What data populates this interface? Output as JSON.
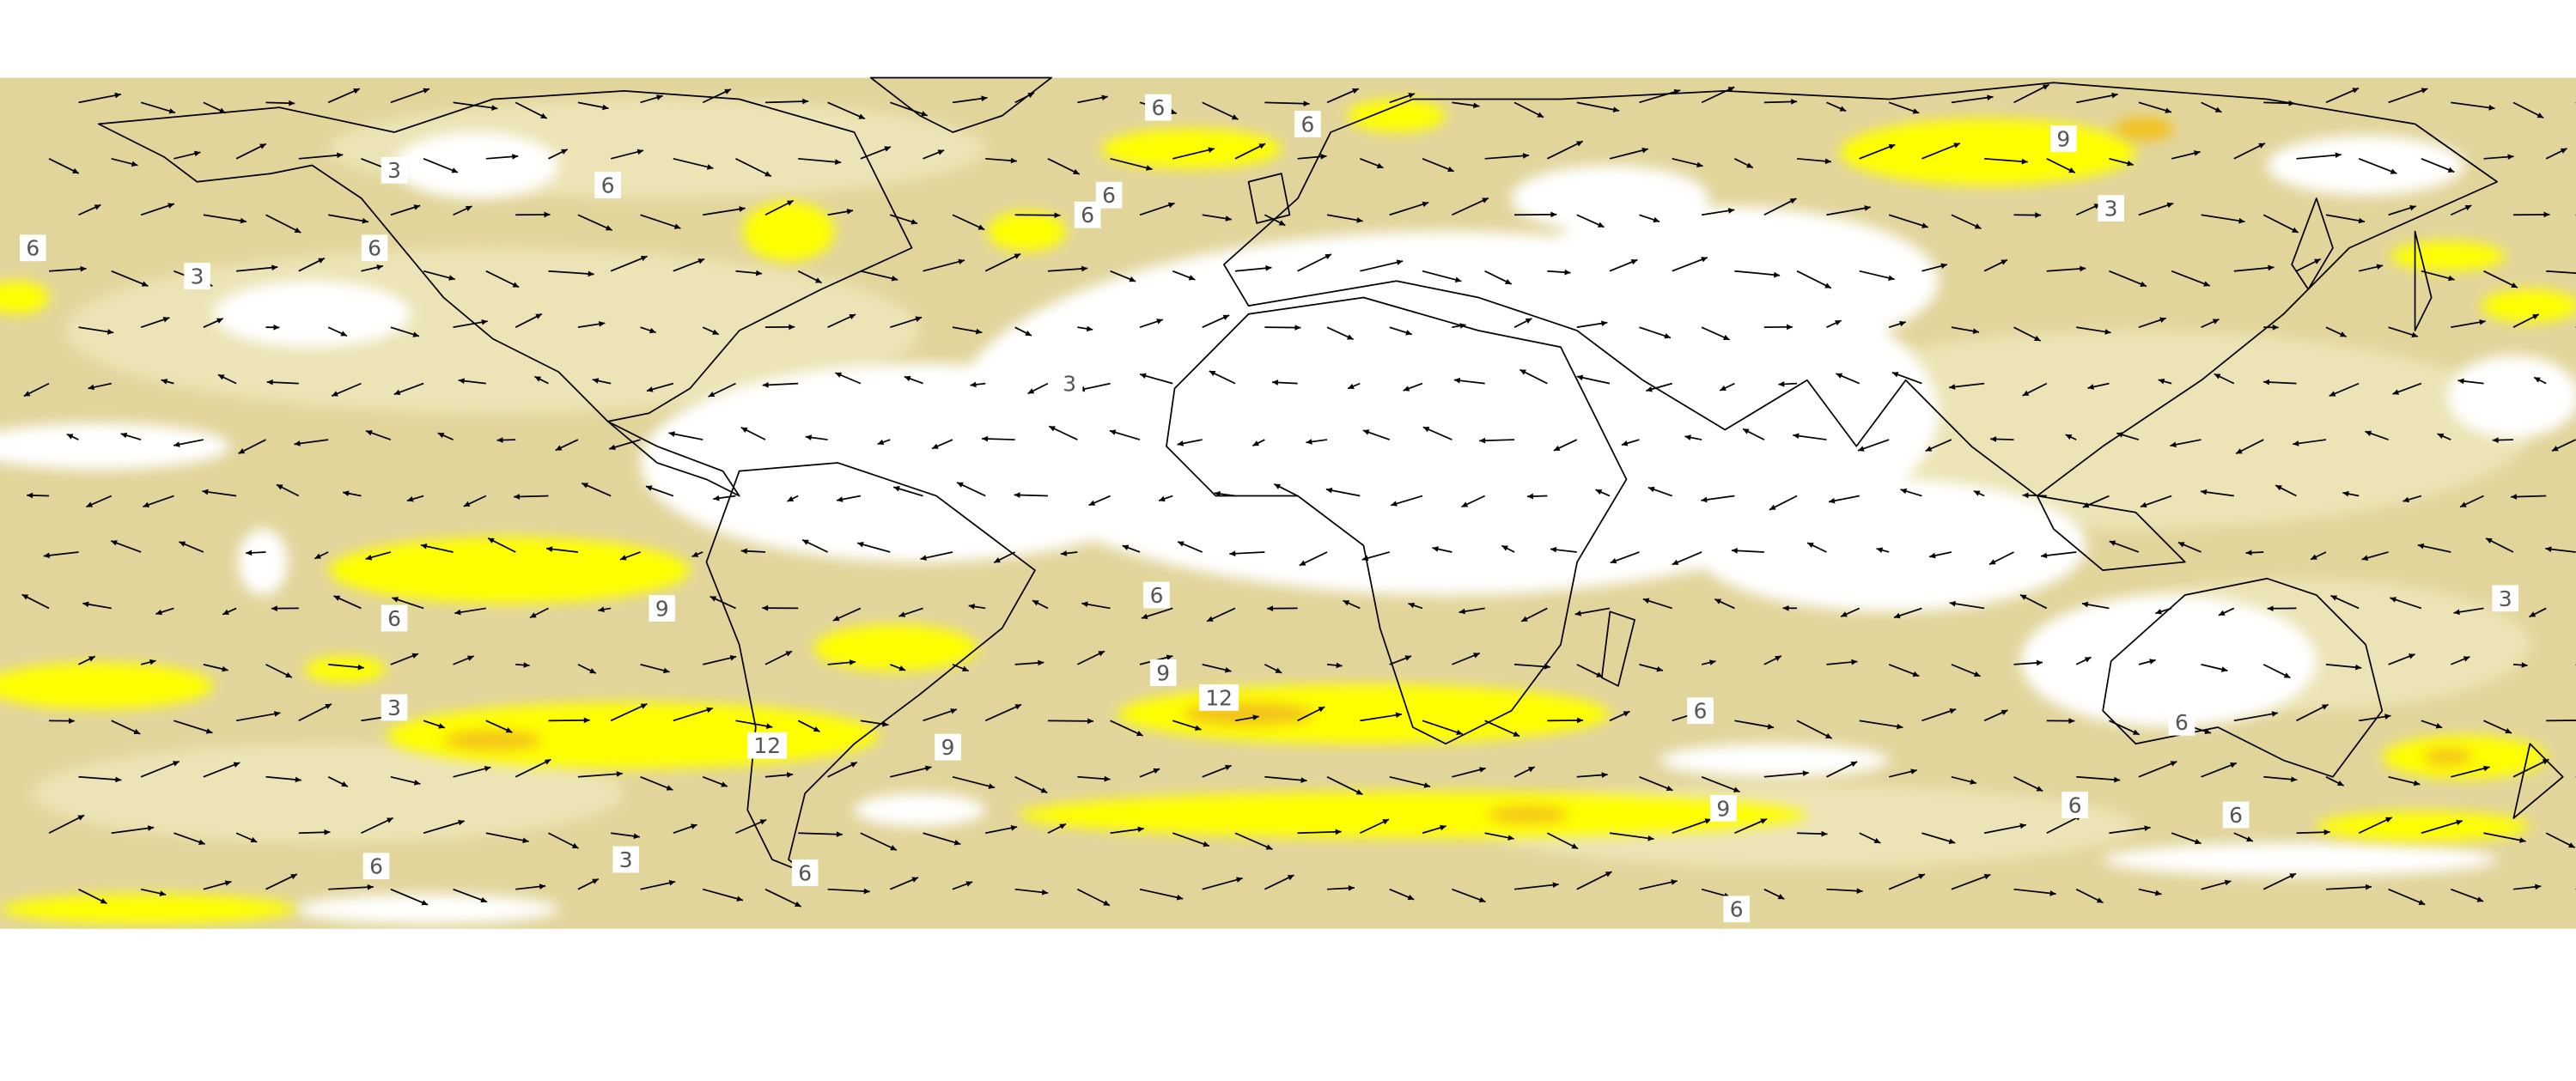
{
  "contour_labels": [
    "6",
    "6",
    "3",
    "6",
    "6",
    "6",
    "9",
    "3",
    "6",
    "6",
    "3",
    "3",
    "6",
    "6",
    "9",
    "9",
    "12",
    "3",
    "12",
    "9",
    "6",
    "6",
    "3",
    "9",
    "6",
    "6",
    "6",
    "3",
    "6",
    "6"
  ]
}
